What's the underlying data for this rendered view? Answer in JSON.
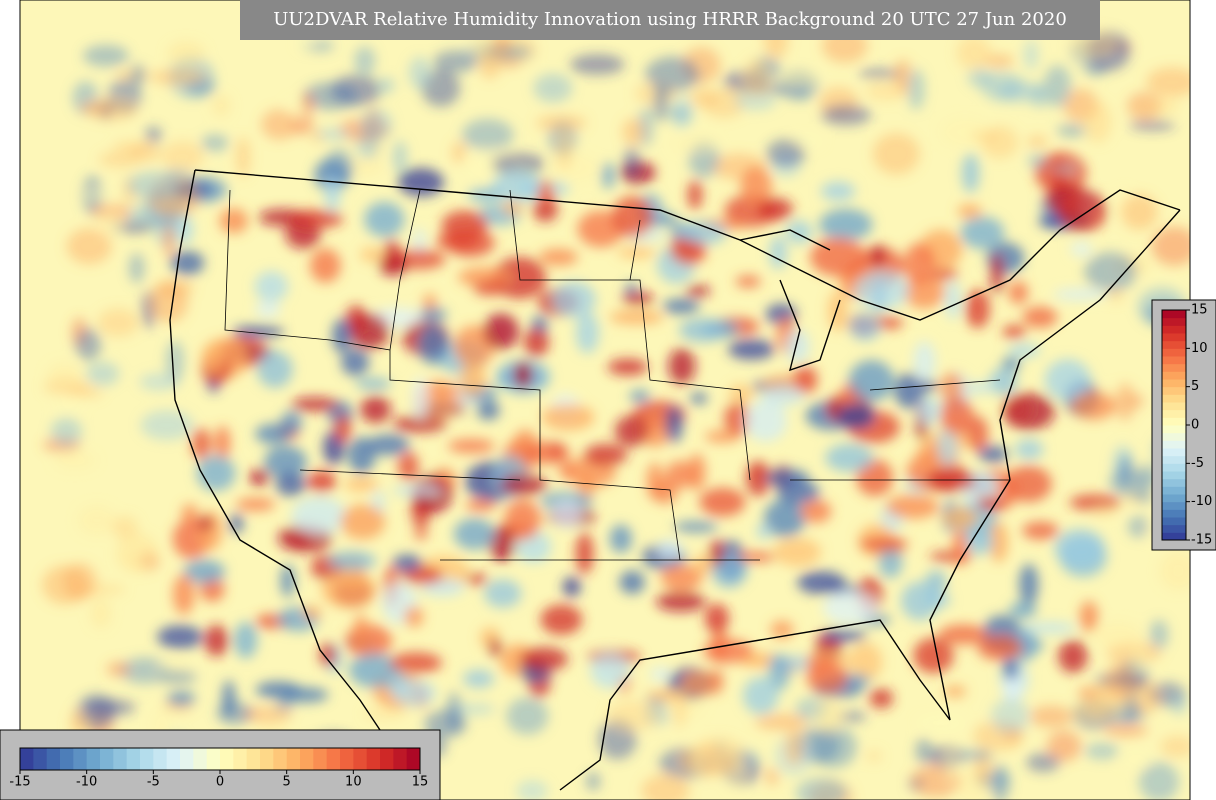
{
  "title": "UU2DVAR Relative Humidity Innovation using HRRR Background 20 UTC 27 Jun 2020",
  "colorbar": {
    "lim": [
      -15,
      15
    ],
    "ticks": [
      -15,
      -10,
      -5,
      0,
      5,
      10,
      15
    ],
    "colormap": [
      "#313695",
      "#4575b4",
      "#74add1",
      "#abd9e9",
      "#e0f3f8",
      "#ffffbf",
      "#fee090",
      "#fdae61",
      "#f46d43",
      "#d73027",
      "#a50026"
    ]
  }
}
